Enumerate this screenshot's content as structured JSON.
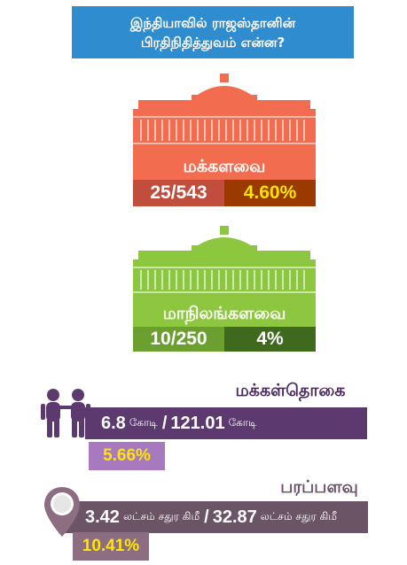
{
  "title": {
    "line1": "இந்தியாவில் ராஜஸ்தானின்",
    "line2": "பிரதிநிதித்துவம் என்ன?"
  },
  "lok_sabha": {
    "label": "மக்களவை",
    "seats": "25/543",
    "percent": "4.60%",
    "colors": {
      "building": "#f26c4f",
      "seats_bg": "#c14e3d",
      "percent_bg": "#9a3a00",
      "percent_text": "#ffe600"
    }
  },
  "rajya_sabha": {
    "label": "மாநிலங்களவை",
    "seats": "10/250",
    "percent": "4%",
    "colors": {
      "building": "#8dc63f",
      "seats_bg": "#6b9f30",
      "percent_bg": "#3f6a1e"
    }
  },
  "population": {
    "heading": "மக்கள்தொகை",
    "state_value": "6.8",
    "state_unit": "கோடி",
    "slash": "/",
    "india_value": "121.01",
    "india_unit": "கோடி",
    "percent": "5.66%",
    "icon": "people-icon",
    "colors": {
      "bar": "#5c3a70",
      "percent_bg": "#a779be",
      "percent_text": "#ffe600"
    }
  },
  "area": {
    "heading": "பரப்பளவு",
    "state_value": "3.42",
    "state_unit": "லட்சம் சதுர கிமீ",
    "slash": "/",
    "india_value": "32.87",
    "india_unit": "லட்சம் சதுர கிமீ",
    "percent": "10.41%",
    "icon": "map-pin-icon",
    "colors": {
      "bar": "#6b5466",
      "percent_bg": "#8c6d82",
      "percent_text": "#ffe600"
    }
  }
}
